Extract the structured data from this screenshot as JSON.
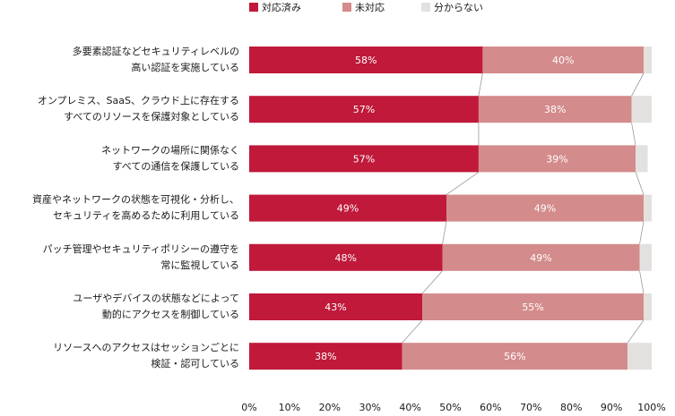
{
  "chart_data": {
    "type": "bar",
    "orientation": "horizontal",
    "stacked": true,
    "categories": [
      [
        "多要素認証などセキュリティレベルの",
        "高い認証を実施している"
      ],
      [
        "オンプレミス、SaaS、クラウド上に存在する",
        "すべてのリソースを保護対象としている"
      ],
      [
        "ネットワークの場所に関係なく",
        "すべての通信を保護している"
      ],
      [
        "資産やネットワークの状態を可視化・分析し、",
        "セキュリティを高めるために利用している"
      ],
      [
        "パッチ管理やセキュリティポリシーの遵守を",
        "常に監視している"
      ],
      [
        "ユーザやデバイスの状態などによって",
        "動的にアクセスを制御している"
      ],
      [
        "リソースへのアクセスはセッションごとに",
        "検証・認可している"
      ]
    ],
    "series": [
      {
        "name": "対応済み",
        "color": "#c0193a",
        "values": [
          58,
          57,
          57,
          49,
          48,
          43,
          38
        ],
        "labels": [
          "58%",
          "57%",
          "57%",
          "49%",
          "48%",
          "43%",
          "38%"
        ]
      },
      {
        "name": "未対応",
        "color": "#d48b8b",
        "values": [
          40,
          38,
          39,
          49,
          49,
          55,
          56
        ],
        "labels": [
          "40%",
          "38%",
          "39%",
          "49%",
          "49%",
          "55%",
          "56%"
        ]
      },
      {
        "name": "分からない",
        "color": "#e3e0e0",
        "values": [
          2,
          5,
          3,
          2,
          3,
          2,
          6
        ]
      }
    ],
    "xlim": [
      0,
      100
    ],
    "xticks": [
      "0%",
      "10%",
      "20%",
      "30%",
      "40%",
      "50%",
      "60%",
      "70%",
      "80%",
      "90%",
      "100%"
    ],
    "legend": "top",
    "grid": false,
    "series_connector_lines": true
  }
}
